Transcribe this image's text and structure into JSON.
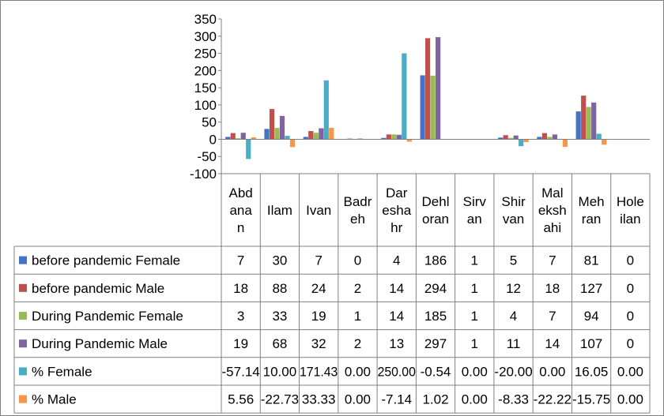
{
  "chart_data": {
    "type": "bar",
    "categories": [
      [
        "Abd",
        "ana",
        "n"
      ],
      [
        "Ilam"
      ],
      [
        "Ivan"
      ],
      [
        "Badr",
        "eh"
      ],
      [
        "Dar",
        "esha",
        "hr"
      ],
      [
        "Dehl",
        "oran"
      ],
      [
        "Sirv",
        "an"
      ],
      [
        "Shir",
        "van"
      ],
      [
        "Mal",
        "eksh",
        "ahi"
      ],
      [
        "Meh",
        "ran"
      ],
      [
        "Hole",
        "ilan"
      ]
    ],
    "ylim": [
      -100,
      350
    ],
    "yticks": [
      "350",
      "300",
      "250",
      "200",
      "150",
      "100",
      "50",
      "0",
      "-50",
      "-100"
    ],
    "grid": false,
    "legend": "table-below",
    "series": [
      {
        "name": "before pandemic Female",
        "color": "#4472C4",
        "values": [
          7,
          30,
          7,
          0,
          4,
          186,
          1,
          5,
          7,
          81,
          0
        ],
        "labels": [
          "7",
          "30",
          "7",
          "0",
          "4",
          "186",
          "1",
          "5",
          "7",
          "81",
          "0"
        ]
      },
      {
        "name": "before pandemic Male",
        "color": "#C0504D",
        "values": [
          18,
          88,
          24,
          2,
          14,
          294,
          1,
          12,
          18,
          127,
          0
        ],
        "labels": [
          "18",
          "88",
          "24",
          "2",
          "14",
          "294",
          "1",
          "12",
          "18",
          "127",
          "0"
        ]
      },
      {
        "name": "During Pandemic Female",
        "color": "#9BBB59",
        "values": [
          3,
          33,
          19,
          1,
          14,
          185,
          1,
          4,
          7,
          94,
          0
        ],
        "labels": [
          "3",
          "33",
          "19",
          "1",
          "14",
          "185",
          "1",
          "4",
          "7",
          "94",
          "0"
        ]
      },
      {
        "name": "During Pandemic Male",
        "color": "#8064A2",
        "values": [
          19,
          68,
          32,
          2,
          13,
          297,
          1,
          11,
          14,
          107,
          0
        ],
        "labels": [
          "19",
          "68",
          "32",
          "2",
          "13",
          "297",
          "1",
          "11",
          "14",
          "107",
          "0"
        ]
      },
      {
        "name": "% Female",
        "color": "#4BACC6",
        "values": [
          -57.14,
          10.0,
          171.43,
          0.0,
          250.0,
          -0.54,
          0.0,
          -20.0,
          0.0,
          16.05,
          0.0
        ],
        "labels": [
          "-57.14",
          "10.00",
          "171.43",
          "0.00",
          "250.00",
          "-0.54",
          "0.00",
          "-20.00",
          "0.00",
          "16.05",
          "0.00"
        ]
      },
      {
        "name": "% Male",
        "color": "#F79646",
        "values": [
          5.56,
          -22.73,
          33.33,
          0.0,
          -7.14,
          1.02,
          0.0,
          -8.33,
          -22.22,
          -15.75,
          0.0
        ],
        "labels": [
          "5.56",
          "-22.73",
          "33.33",
          "0.00",
          "-7.14",
          "1.02",
          "0.00",
          "-8.33",
          "-22.22",
          "-15.75",
          "0.00"
        ]
      }
    ]
  }
}
